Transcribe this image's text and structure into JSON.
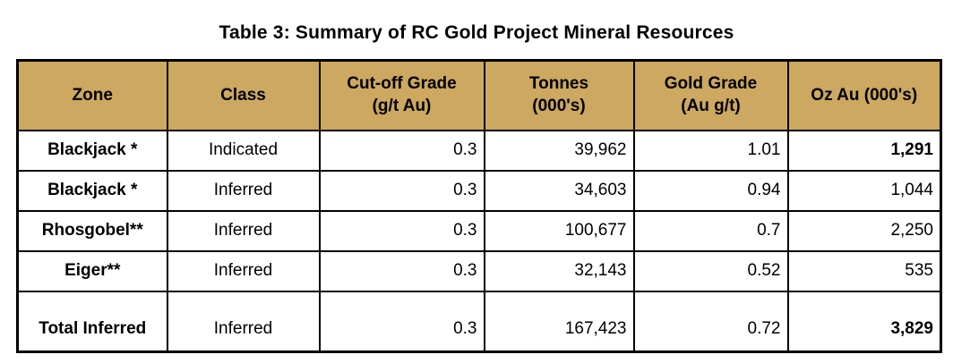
{
  "title": "Table 3: Summary of RC Gold Project Mineral Resources",
  "colors": {
    "header_bg": "#CCA860",
    "border": "#000000",
    "text": "#000000",
    "page_bg": "#FFFFFF"
  },
  "columns": [
    {
      "line1": "Zone",
      "line2": ""
    },
    {
      "line1": "Class",
      "line2": ""
    },
    {
      "line1": "Cut-off Grade",
      "line2": "(g/t Au)"
    },
    {
      "line1": "Tonnes",
      "line2": "(000's)"
    },
    {
      "line1": "Gold Grade",
      "line2": "(Au g/t)"
    },
    {
      "line1": "Oz Au (000's)",
      "line2": ""
    }
  ],
  "rows": [
    {
      "zone": "Blackjack *",
      "class": "Indicated",
      "cutoff_grade": "0.3",
      "tonnes": "39,962",
      "gold_grade": "1.01",
      "oz_au": "1,291"
    },
    {
      "zone": "Blackjack *",
      "class": "Inferred",
      "cutoff_grade": "0.3",
      "tonnes": "34,603",
      "gold_grade": "0.94",
      "oz_au": "1,044"
    },
    {
      "zone": "Rhosgobel**",
      "class": "Inferred",
      "cutoff_grade": "0.3",
      "tonnes": "100,677",
      "gold_grade": "0.7",
      "oz_au": "2,250"
    },
    {
      "zone": "Eiger**",
      "class": "Inferred",
      "cutoff_grade": "0.3",
      "tonnes": "32,143",
      "gold_grade": "0.52",
      "oz_au": "535"
    },
    {
      "zone": "Total Inferred",
      "class": "Inferred",
      "cutoff_grade": "0.3",
      "tonnes": "167,423",
      "gold_grade": "0.72",
      "oz_au": "3,829"
    }
  ]
}
